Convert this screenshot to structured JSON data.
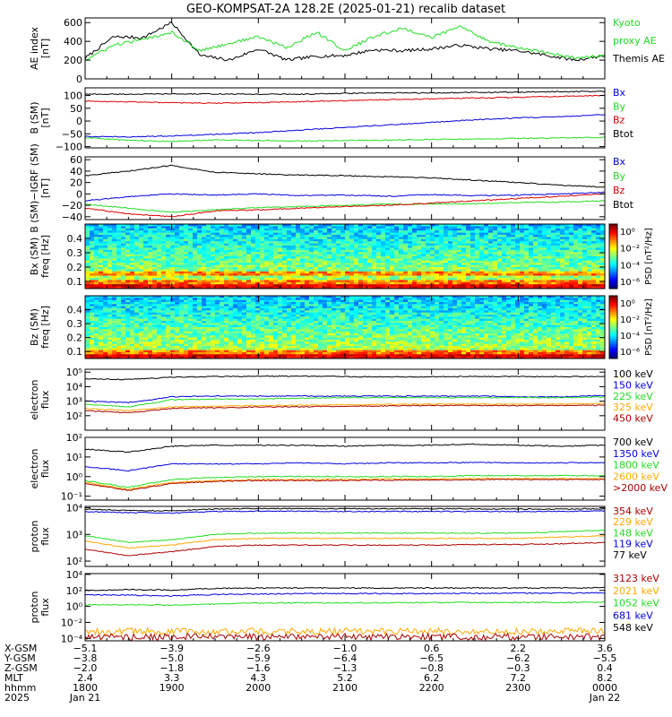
{
  "title": "GEO-KOMPSAT-2A 128.2E (2025-01-21) recalib dataset",
  "colors": {
    "black": "#000000",
    "blue": "#0000dd",
    "red": "#dd0000",
    "green": "#22dd22",
    "orange": "#ffaa00",
    "darkred": "#aa0000"
  },
  "chart_data": [
    {
      "type": "line",
      "id": "ae",
      "ylabel_lines": [
        "AE index",
        "[nT]"
      ],
      "ylim": [
        0,
        650
      ],
      "yticks": [
        0,
        200,
        400,
        600
      ],
      "yticklabels": [
        "0",
        "200",
        "400",
        "600"
      ],
      "x_hours": [
        18,
        18.33,
        18.67,
        19,
        19.33,
        19.67,
        20,
        20.33,
        20.67,
        21,
        21.33,
        21.67,
        22,
        22.33,
        22.67,
        23,
        23.33,
        23.67,
        24
      ],
      "series": [
        {
          "name": "Themis AE",
          "color": "black",
          "values": [
            220,
            450,
            440,
            600,
            250,
            200,
            320,
            200,
            240,
            250,
            310,
            300,
            320,
            360,
            320,
            300,
            250,
            200,
            250
          ]
        },
        {
          "name": "Kyoto proxy AE",
          "color": "green",
          "values": [
            200,
            360,
            420,
            500,
            300,
            380,
            450,
            330,
            500,
            300,
            450,
            540,
            440,
            560,
            400,
            330,
            280,
            220,
            250
          ]
        }
      ],
      "legend": [
        {
          "label": "Kyoto",
          "color": "green"
        },
        {
          "label": "proxy AE",
          "color": "green"
        },
        {
          "label": "Themis AE",
          "color": "black"
        }
      ]
    },
    {
      "type": "line",
      "id": "bsm",
      "ylabel_lines": [
        "B (SM)",
        "[nT]"
      ],
      "ylim": [
        -105,
        130
      ],
      "yticks": [
        -100,
        -50,
        0,
        50,
        100
      ],
      "yticklabels": [
        "−100",
        "−50",
        "0",
        "50",
        "100"
      ],
      "x_hours": [
        18,
        18.5,
        19,
        19.5,
        20,
        20.5,
        21,
        21.5,
        22,
        22.5,
        23,
        23.5,
        24
      ],
      "series": [
        {
          "name": "Btot",
          "color": "black",
          "values": [
            105,
            105,
            106,
            106,
            105,
            105,
            108,
            110,
            110,
            112,
            113,
            115,
            116
          ]
        },
        {
          "name": "Bz",
          "color": "red",
          "values": [
            78,
            75,
            72,
            70,
            72,
            76,
            80,
            84,
            87,
            90,
            93,
            97,
            100
          ]
        },
        {
          "name": "Bx",
          "color": "blue",
          "values": [
            -60,
            -62,
            -58,
            -52,
            -45,
            -35,
            -25,
            -15,
            -5,
            5,
            12,
            18,
            25
          ]
        },
        {
          "name": "By",
          "color": "green",
          "values": [
            -65,
            -75,
            -80,
            -74,
            -76,
            -78,
            -76,
            -75,
            -72,
            -70,
            -68,
            -66,
            -64
          ]
        }
      ],
      "legend": [
        {
          "label": "Bx",
          "color": "blue"
        },
        {
          "label": "By",
          "color": "green"
        },
        {
          "label": "Bz",
          "color": "red"
        },
        {
          "label": "Btot",
          "color": "black"
        }
      ]
    },
    {
      "type": "line",
      "id": "bigrf",
      "ylabel_lines": [
        "B (SM)−IGRF (SM)",
        "[nT]"
      ],
      "ylim": [
        -45,
        65
      ],
      "yticks": [
        -40,
        -20,
        0,
        20,
        40,
        60
      ],
      "yticklabels": [
        "−40",
        "−20",
        "0",
        "20",
        "40",
        "60"
      ],
      "x_hours": [
        18,
        18.5,
        19,
        19.5,
        20,
        20.5,
        21,
        21.5,
        22,
        22.5,
        23,
        23.5,
        24
      ],
      "series": [
        {
          "name": "Btot",
          "color": "black",
          "values": [
            32,
            40,
            50,
            38,
            35,
            33,
            32,
            30,
            28,
            24,
            20,
            15,
            12
          ]
        },
        {
          "name": "Bx",
          "color": "blue",
          "values": [
            -12,
            -5,
            0,
            -2,
            0,
            -3,
            -2,
            -4,
            -1,
            -3,
            -2,
            0,
            3
          ]
        },
        {
          "name": "By",
          "color": "green",
          "values": [
            -18,
            -25,
            -32,
            -28,
            -24,
            -22,
            -20,
            -18,
            -18,
            -17,
            -15,
            -14,
            -12
          ]
        },
        {
          "name": "Bz",
          "color": "red",
          "values": [
            -25,
            -35,
            -40,
            -30,
            -28,
            -25,
            -22,
            -20,
            -16,
            -12,
            -8,
            -4,
            0
          ]
        }
      ],
      "legend": [
        {
          "label": "Bx",
          "color": "blue"
        },
        {
          "label": "By",
          "color": "green"
        },
        {
          "label": "Bz",
          "color": "red"
        },
        {
          "label": "Btot",
          "color": "black"
        }
      ]
    },
    {
      "type": "heatmap",
      "id": "bx_psd",
      "ylabel_lines": [
        "Bx (SM)",
        "freq [Hz]"
      ],
      "ylim": [
        0.05,
        0.5
      ],
      "yticks": [
        0.1,
        0.2,
        0.3,
        0.4
      ],
      "yticklabels": [
        "0.1",
        "0.2",
        "0.3",
        "0.4"
      ],
      "colorbar_label": "PSD [nT²/Hz]",
      "colorbar_ticks": [
        "10⁰",
        "10⁻²",
        "10⁻⁴",
        "10⁻⁶"
      ]
    },
    {
      "type": "heatmap",
      "id": "bz_psd",
      "ylabel_lines": [
        "Bz (SM)",
        "freq [Hz]"
      ],
      "ylim": [
        0.05,
        0.5
      ],
      "yticks": [
        0.1,
        0.2,
        0.3,
        0.4
      ],
      "yticklabels": [
        "0.1",
        "0.2",
        "0.3",
        "0.4"
      ],
      "colorbar_label": "PSD [nT²/Hz]",
      "colorbar_ticks": [
        "10⁰",
        "10⁻²",
        "10⁻⁴",
        "10⁻⁶"
      ]
    },
    {
      "type": "line",
      "id": "elec_low",
      "log": true,
      "ylabel_lines": [
        "electron",
        "flux"
      ],
      "ylim": [
        1,
        5.2
      ],
      "yticks": [
        2,
        3,
        4,
        5
      ],
      "yticklabels": [
        "10²",
        "10³",
        "10⁴",
        "10⁵"
      ],
      "x_hours": [
        18,
        18.5,
        19,
        19.5,
        20,
        20.5,
        21,
        21.5,
        22,
        22.5,
        23,
        23.5,
        24
      ],
      "series": [
        {
          "name": "100 keV",
          "color": "black",
          "values": [
            4.55,
            4.5,
            4.65,
            4.7,
            4.72,
            4.72,
            4.7,
            4.68,
            4.68,
            4.7,
            4.7,
            4.7,
            4.7
          ]
        },
        {
          "name": "150 keV",
          "color": "blue",
          "values": [
            3.0,
            2.9,
            3.3,
            3.35,
            3.35,
            3.35,
            3.35,
            3.35,
            3.35,
            3.35,
            3.3,
            3.3,
            3.4
          ]
        },
        {
          "name": "225 keV",
          "color": "green",
          "values": [
            2.8,
            2.6,
            3.1,
            3.15,
            3.15,
            3.2,
            3.25,
            3.25,
            3.25,
            3.25,
            3.25,
            3.25,
            3.3
          ]
        },
        {
          "name": "325 keV",
          "color": "orange",
          "values": [
            2.5,
            2.35,
            2.6,
            2.65,
            2.7,
            2.72,
            2.75,
            2.78,
            2.8,
            2.8,
            2.8,
            2.8,
            2.85
          ]
        },
        {
          "name": "450 keV",
          "color": "darkred",
          "values": [
            2.35,
            2.2,
            2.5,
            2.55,
            2.6,
            2.62,
            2.65,
            2.68,
            2.7,
            2.7,
            2.7,
            2.7,
            2.72
          ]
        }
      ],
      "legend": [
        {
          "label": "100 keV",
          "color": "black"
        },
        {
          "label": "150 keV",
          "color": "blue"
        },
        {
          "label": "225 keV",
          "color": "green"
        },
        {
          "label": "325 keV",
          "color": "orange"
        },
        {
          "label": "450 keV",
          "color": "darkred"
        }
      ]
    },
    {
      "type": "line",
      "id": "elec_high",
      "log": true,
      "ylabel_lines": [
        "electron",
        "flux"
      ],
      "ylim": [
        -1.2,
        2
      ],
      "yticks": [
        -1,
        0,
        1,
        2
      ],
      "yticklabels": [
        "10⁻¹",
        "10⁰",
        "10¹",
        "10²"
      ],
      "x_hours": [
        18,
        18.5,
        19,
        19.5,
        20,
        20.5,
        21,
        21.5,
        22,
        22.5,
        23,
        23.5,
        24
      ],
      "series": [
        {
          "name": "700 keV",
          "color": "black",
          "values": [
            1.4,
            1.25,
            1.55,
            1.6,
            1.6,
            1.6,
            1.55,
            1.6,
            1.6,
            1.65,
            1.6,
            1.55,
            1.6
          ]
        },
        {
          "name": "1350 keV",
          "color": "blue",
          "values": [
            0.5,
            0.3,
            0.65,
            0.65,
            0.65,
            0.7,
            0.65,
            0.7,
            0.7,
            0.72,
            0.7,
            0.7,
            0.72
          ]
        },
        {
          "name": "1800 keV",
          "color": "green",
          "values": [
            -0.2,
            -0.55,
            -0.15,
            -0.05,
            0,
            0,
            0,
            0,
            0,
            0.05,
            0.05,
            0.05,
            0.05
          ]
        },
        {
          "name": "2600 keV",
          "color": "orange",
          "values": [
            -0.3,
            -0.65,
            -0.3,
            -0.2,
            -0.15,
            -0.15,
            -0.15,
            -0.12,
            -0.12,
            -0.1,
            -0.1,
            -0.1,
            -0.1
          ]
        },
        {
          "name": ">2000 keV",
          "color": "darkred",
          "values": [
            -0.35,
            -0.7,
            -0.35,
            -0.25,
            -0.2,
            -0.2,
            -0.2,
            -0.18,
            -0.18,
            -0.15,
            -0.15,
            -0.15,
            -0.15
          ]
        }
      ],
      "legend": [
        {
          "label": "700 keV",
          "color": "black"
        },
        {
          "label": "1350 keV",
          "color": "blue"
        },
        {
          "label": "1800 keV",
          "color": "green"
        },
        {
          "label": "2600 keV",
          "color": "orange"
        },
        {
          "label": ">2000 keV",
          "color": "darkred"
        }
      ]
    },
    {
      "type": "line",
      "id": "proton_high",
      "log": true,
      "ylabel_lines": [
        "proton",
        "flux"
      ],
      "ylim": [
        1.8,
        4.05
      ],
      "yticks": [
        2,
        3,
        4
      ],
      "yticklabels": [
        "10²",
        "10³",
        "10⁴"
      ],
      "x_hours": [
        18,
        18.5,
        19,
        19.5,
        20,
        20.5,
        21,
        21.5,
        22,
        22.5,
        23,
        23.5,
        24
      ],
      "series": [
        {
          "name": "77 keV",
          "color": "black",
          "values": [
            3.95,
            3.9,
            3.88,
            3.95,
            3.97,
            3.97,
            3.96,
            3.96,
            3.96,
            3.96,
            3.95,
            3.95,
            3.96
          ]
        },
        {
          "name": "119 keV",
          "color": "blue",
          "values": [
            3.85,
            3.82,
            3.8,
            3.86,
            3.87,
            3.87,
            3.86,
            3.86,
            3.86,
            3.86,
            3.86,
            3.86,
            3.88
          ]
        },
        {
          "name": "148 keV",
          "color": "green",
          "values": [
            2.95,
            2.7,
            2.8,
            3.0,
            3.05,
            3.05,
            3.05,
            3.05,
            3.05,
            3.05,
            3.05,
            3.1,
            3.15
          ]
        },
        {
          "name": "229 keV",
          "color": "orange",
          "values": [
            2.75,
            2.5,
            2.6,
            2.8,
            2.85,
            2.85,
            2.85,
            2.85,
            2.85,
            2.85,
            2.85,
            2.9,
            2.95
          ]
        },
        {
          "name": "354 keV",
          "color": "darkred",
          "values": [
            2.45,
            2.2,
            2.35,
            2.55,
            2.6,
            2.6,
            2.6,
            2.6,
            2.6,
            2.62,
            2.62,
            2.65,
            2.7
          ]
        }
      ],
      "legend": [
        {
          "label": "354 keV",
          "color": "darkred"
        },
        {
          "label": "229 keV",
          "color": "orange"
        },
        {
          "label": "148 keV",
          "color": "green"
        },
        {
          "label": "119 keV",
          "color": "blue"
        },
        {
          "label": "77 keV",
          "color": "black"
        }
      ]
    },
    {
      "type": "line",
      "id": "proton_low",
      "log": true,
      "ylabel_lines": [
        "proton",
        "flux"
      ],
      "ylim": [
        -4.3,
        4.1
      ],
      "yticks": [
        -4,
        -2,
        0,
        2,
        4
      ],
      "yticklabels": [
        "10⁻⁴",
        "10⁻²",
        "10⁰",
        "10²",
        "10⁴"
      ],
      "x_hours": [
        18,
        18.5,
        19,
        19.5,
        20,
        20.5,
        21,
        21.5,
        22,
        22.5,
        23,
        23.5,
        24
      ],
      "series": [
        {
          "name": "548 keV",
          "color": "black",
          "values": [
            2.0,
            2.1,
            2.05,
            2.25,
            2.3,
            2.3,
            2.3,
            2.3,
            2.3,
            2.3,
            2.3,
            2.3,
            2.35
          ]
        },
        {
          "name": "681 keV",
          "color": "blue",
          "values": [
            1.45,
            1.4,
            1.3,
            1.5,
            1.55,
            1.6,
            1.6,
            1.6,
            1.6,
            1.65,
            1.65,
            1.65,
            1.7
          ]
        },
        {
          "name": "1052 keV",
          "color": "green",
          "values": [
            0.2,
            0.2,
            0.15,
            0.3,
            0.4,
            0.45,
            0.45,
            0.45,
            0.5,
            0.5,
            0.5,
            0.5,
            0.55
          ]
        },
        {
          "name": "2021 keV",
          "color": "orange",
          "values": [
            -3.1,
            -3.1,
            -3.1,
            -3.1,
            -3.1,
            -3.1,
            -3.1,
            -3.1,
            -3.1,
            -3.1,
            -3.1,
            -3.1,
            -3.1
          ]
        },
        {
          "name": "3123 keV",
          "color": "darkred",
          "values": [
            -3.8,
            -3.8,
            -3.8,
            -3.8,
            -3.8,
            -3.8,
            -3.8,
            -3.8,
            -3.8,
            -3.8,
            -3.8,
            -3.8,
            -3.8
          ]
        }
      ],
      "legend": [
        {
          "label": "3123 keV",
          "color": "darkred"
        },
        {
          "label": "2021 keV",
          "color": "orange"
        },
        {
          "label": "1052 keV",
          "color": "green"
        },
        {
          "label": "681 keV",
          "color": "blue"
        },
        {
          "label": "548 keV",
          "color": "black"
        }
      ]
    }
  ],
  "footer": {
    "row_labels": [
      "X-GSM",
      "Y-GSM",
      "Z-GSM",
      "MLT",
      "hhmm",
      "2025"
    ],
    "tick_hours": [
      18,
      19,
      20,
      21,
      22,
      23,
      24
    ],
    "columns": [
      [
        "−5.1",
        "−3.8",
        "−2.0",
        "2.4",
        "1800",
        "Jan 21"
      ],
      [
        "−3.9",
        "−5.0",
        "−1.8",
        "3.3",
        "1900",
        ""
      ],
      [
        "−2.6",
        "−5.9",
        "−1.6",
        "4.3",
        "2000",
        ""
      ],
      [
        "−1.0",
        "−6.4",
        "−1.3",
        "5.2",
        "2100",
        ""
      ],
      [
        "0.6",
        "−6.5",
        "−0.8",
        "6.2",
        "2200",
        ""
      ],
      [
        "2.2",
        "−6.2",
        "−0.3",
        "7.2",
        "2300",
        ""
      ],
      [
        "3.6",
        "−5.5",
        "0.4",
        "8.2",
        "0000",
        "Jan 22"
      ]
    ]
  }
}
